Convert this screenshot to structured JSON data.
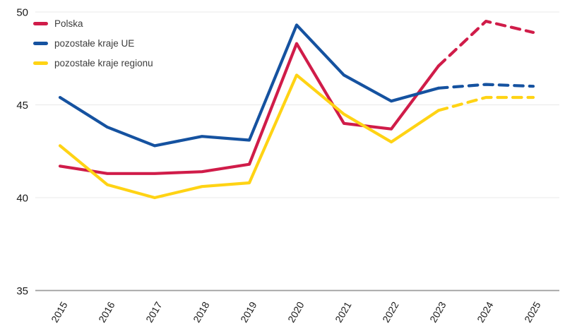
{
  "chart_data": {
    "type": "line",
    "x": [
      "2015",
      "2016",
      "2017",
      "2018",
      "2019",
      "2020",
      "2021",
      "2022",
      "2023",
      "2024",
      "2025"
    ],
    "ylim": [
      35,
      50
    ],
    "yticks": [
      35,
      40,
      45,
      50
    ],
    "grid": "horizontal",
    "legend_position": "top-left",
    "forecast_from_index": 8,
    "forecast_line_style": "dashed",
    "series": [
      {
        "name": "Polska",
        "color": "#d01c49",
        "values": [
          41.7,
          41.3,
          41.3,
          41.4,
          41.8,
          48.3,
          44.0,
          43.7,
          47.1,
          49.5,
          48.9
        ]
      },
      {
        "name": "pozostałe kraje UE",
        "color": "#1552a0",
        "values": [
          45.4,
          43.8,
          42.8,
          43.3,
          43.1,
          49.3,
          46.6,
          45.2,
          45.9,
          46.1,
          46.0
        ]
      },
      {
        "name": "pozostałe kraje regionu",
        "color": "#ffd314",
        "values": [
          42.8,
          40.7,
          40.0,
          40.6,
          40.8,
          46.6,
          44.5,
          43.0,
          44.7,
          45.4,
          45.4
        ]
      }
    ],
    "colors": {
      "gridline": "#e8e8e8",
      "axis_line": "#9c9c9c",
      "tick_label": "#1a1a1a"
    }
  }
}
